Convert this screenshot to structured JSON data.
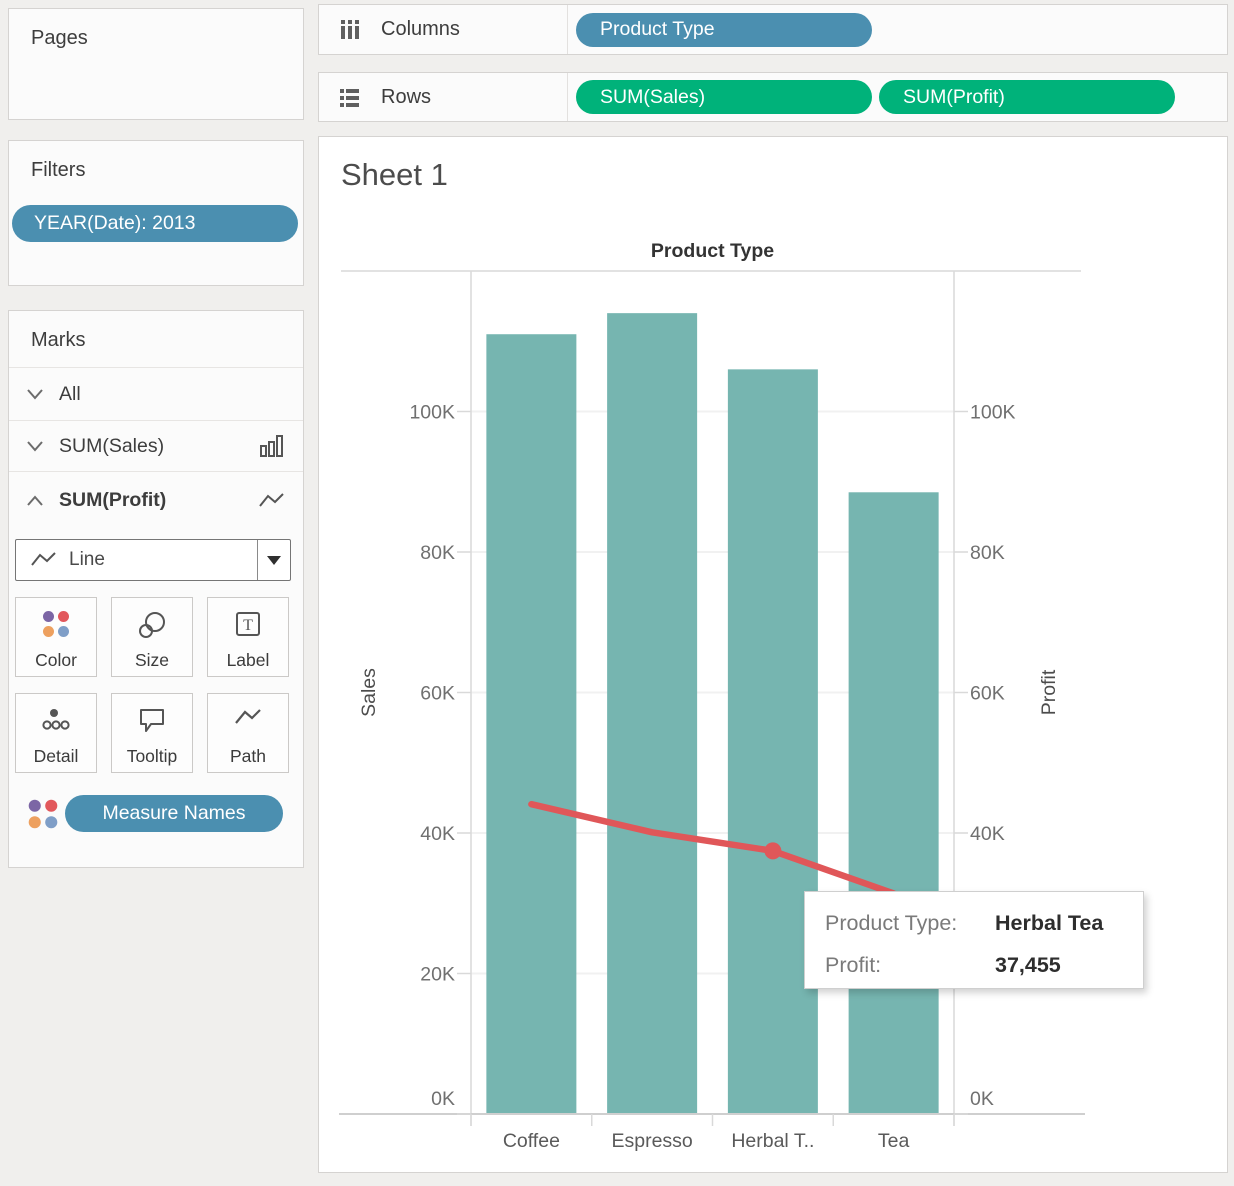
{
  "sheet": {
    "title": "Sheet 1"
  },
  "shelves": {
    "columns": {
      "label": "Columns",
      "pills": [
        {
          "label": "Product Type",
          "type": "dimension"
        }
      ]
    },
    "rows": {
      "label": "Rows",
      "pills": [
        {
          "label": "SUM(Sales)",
          "type": "measure"
        },
        {
          "label": "SUM(Profit)",
          "type": "measure"
        }
      ]
    }
  },
  "sidebar": {
    "pages": {
      "title": "Pages"
    },
    "filters": {
      "title": "Filters",
      "pills": [
        {
          "label": "YEAR(Date): 2013"
        }
      ]
    },
    "marks": {
      "title": "Marks",
      "rows": [
        {
          "label": "All",
          "state": "collapsed"
        },
        {
          "label": "SUM(Sales)",
          "state": "collapsed",
          "mark_icon": "bar-chart"
        },
        {
          "label": "SUM(Profit)",
          "state": "expanded",
          "mark_icon": "line-chart",
          "active": true
        }
      ],
      "mark_type": {
        "value": "Line"
      },
      "buttons": [
        {
          "label": "Color"
        },
        {
          "label": "Size"
        },
        {
          "label": "Label"
        },
        {
          "label": "Detail"
        },
        {
          "label": "Tooltip"
        },
        {
          "label": "Path"
        }
      ],
      "encodings": [
        {
          "channel": "color",
          "label": "Measure Names"
        }
      ]
    }
  },
  "chart_data": {
    "type": "combo-bar-line-dual-axis",
    "column_header": "Product Type",
    "categories": [
      "Coffee",
      "Espresso",
      "Herbal T..",
      "Tea"
    ],
    "series": [
      {
        "name": "SUM(Sales)",
        "mark": "bar",
        "axis": "left",
        "color": "#76b5b0",
        "values": [
          111000,
          114000,
          106000,
          88500
        ]
      },
      {
        "name": "SUM(Profit)",
        "mark": "line",
        "axis": "right",
        "color": "#e05759",
        "values": [
          44100,
          40100,
          37455,
          31400
        ]
      }
    ],
    "left_axis": {
      "title": "Sales",
      "max": 120000,
      "tick_values": [
        0,
        20000,
        40000,
        60000,
        80000,
        100000
      ],
      "tick_labels": [
        "0K",
        "20K",
        "40K",
        "60K",
        "80K",
        "100K"
      ]
    },
    "right_axis": {
      "title": "Profit",
      "max": 120000,
      "tick_values": [
        0,
        20000,
        40000,
        60000,
        80000,
        100000
      ],
      "tick_labels": [
        "0K",
        "20K",
        "40K",
        "60K",
        "80K",
        "100K"
      ]
    },
    "highlight": {
      "series": "SUM(Profit)",
      "category_index": 2
    },
    "grid": true,
    "legend_position": "none"
  },
  "tooltip": {
    "rows": [
      {
        "label": "Product Type:",
        "value": "Herbal Tea"
      },
      {
        "label": "Profit:",
        "value": "37,455"
      }
    ]
  },
  "icons": {
    "label_button_letter": "T",
    "color_dot_colors": [
      "#7c66a5",
      "#e2585c",
      "#eda05f",
      "#7f9ec7"
    ]
  },
  "colors": {
    "dimension_pill": "#4b8fb0",
    "measure_pill": "#00b27a",
    "bar": "#76b5b0",
    "line": "#e05759",
    "background": "#f0efed"
  }
}
